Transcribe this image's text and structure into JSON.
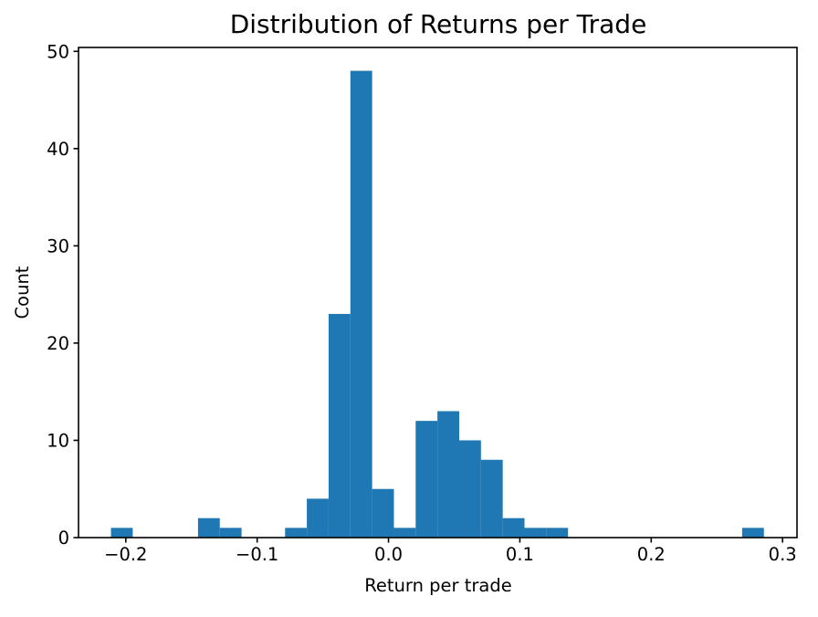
{
  "chart_data": {
    "type": "bar",
    "subtype": "histogram",
    "title": "Distribution of Returns per Trade",
    "xlabel": "Return per trade",
    "ylabel": "Count",
    "histogram": {
      "bin_start": -0.2113,
      "bin_width": 0.01657,
      "counts": [
        1,
        0,
        0,
        0,
        2,
        1,
        0,
        0,
        1,
        4,
        23,
        48,
        5,
        1,
        12,
        13,
        10,
        8,
        2,
        1,
        1,
        0,
        0,
        0,
        0,
        0,
        0,
        0,
        0,
        1
      ]
    },
    "xlim": [
      -0.236,
      0.311
    ],
    "ylim": [
      0,
      50.4
    ],
    "xticks": {
      "values": [
        -0.2,
        -0.1,
        0.0,
        0.1,
        0.2,
        0.3
      ],
      "labels": [
        "−0.2",
        "−0.1",
        "0.0",
        "0.1",
        "0.2",
        "0.3"
      ]
    },
    "yticks": {
      "values": [
        0,
        10,
        20,
        30,
        40,
        50
      ],
      "labels": [
        "0",
        "10",
        "20",
        "30",
        "40",
        "50"
      ]
    },
    "bar_color": "#1f77b4",
    "spine_color": "#000000",
    "grid": false,
    "legend_position": "none"
  }
}
